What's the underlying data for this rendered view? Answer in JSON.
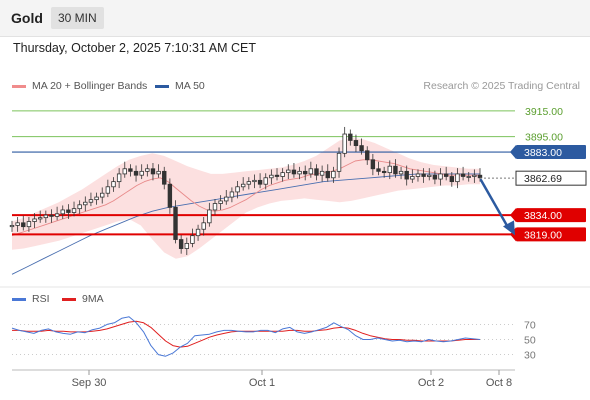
{
  "header": {
    "symbol": "Gold",
    "timeframe": "30 MIN"
  },
  "datetime": "Thursday, October 2, 2025 7:10:31 AM CET",
  "legend": {
    "main": [
      {
        "label": "MA 20 + Bollinger Bands",
        "color": "#f08c8c"
      },
      {
        "label": "MA 50",
        "color": "#2c5aa0"
      }
    ],
    "research": "Research © 2025 Trading Central",
    "rsi": [
      {
        "label": "RSI",
        "color": "#4a78d6"
      },
      {
        "label": "9MA",
        "color": "#e02020"
      }
    ]
  },
  "colors": {
    "resistance": "#7cc35b",
    "pivot": "#2c5aa0",
    "support": "#e00000",
    "price": "#333333",
    "arrow": "#2c5aa0",
    "candle": "#333333"
  },
  "chart_data": [
    {
      "type": "candlestick",
      "title": "Gold",
      "x_tick_labels": [
        "Sep 30",
        "Oct 1",
        "Oct 2",
        "Oct 8"
      ],
      "ylim": [
        3782,
        3925
      ],
      "levels": [
        {
          "value": 3915.0,
          "label": "3915.00",
          "kind": "resistance"
        },
        {
          "value": 3895.0,
          "label": "3895.00",
          "kind": "resistance"
        },
        {
          "value": 3883.0,
          "label": "3883.00",
          "kind": "pivot"
        },
        {
          "value": 3834.0,
          "label": "3834.00",
          "kind": "support"
        },
        {
          "value": 3819.0,
          "label": "3819.00",
          "kind": "support"
        }
      ],
      "last_price": {
        "value": 3862.69,
        "label": "3862.69"
      },
      "close_series": [
        3826,
        3828,
        3825,
        3829,
        3831,
        3832,
        3834,
        3833,
        3835,
        3838,
        3836,
        3839,
        3842,
        3844,
        3846,
        3848,
        3851,
        3856,
        3860,
        3866,
        3870,
        3868,
        3865,
        3868,
        3870,
        3866,
        3868,
        3858,
        3840,
        3815,
        3808,
        3812,
        3818,
        3823,
        3828,
        3838,
        3843,
        3845,
        3848,
        3852,
        3856,
        3858,
        3860,
        3861,
        3858,
        3863,
        3865,
        3864,
        3867,
        3869,
        3866,
        3868,
        3866,
        3870,
        3865,
        3868,
        3863,
        3868,
        3882,
        3897,
        3892,
        3888,
        3884,
        3877,
        3870,
        3868,
        3867,
        3872,
        3866,
        3868,
        3862,
        3864,
        3866,
        3864,
        3865,
        3862,
        3866,
        3864,
        3860,
        3866,
        3864,
        3864,
        3865,
        3863
      ],
      "ma20_series": [
        3818,
        3820,
        3822,
        3824,
        3826,
        3828,
        3830,
        3832,
        3834,
        3836,
        3838,
        3840,
        3842,
        3845,
        3849,
        3853,
        3857,
        3860,
        3862,
        3863,
        3860,
        3855,
        3850,
        3845,
        3841,
        3838,
        3837,
        3838,
        3840,
        3843,
        3846,
        3850,
        3854,
        3857,
        3859,
        3861,
        3862,
        3863,
        3865,
        3866,
        3867,
        3868,
        3870,
        3873,
        3876,
        3877,
        3877,
        3876,
        3875,
        3874,
        3872,
        3870,
        3869,
        3868,
        3867,
        3866,
        3865,
        3865,
        3865,
        3865,
        3865
      ],
      "bb_upper": [
        3829,
        3832,
        3836,
        3840,
        3844,
        3849,
        3854,
        3860,
        3866,
        3872,
        3877,
        3880,
        3882,
        3880,
        3876,
        3872,
        3869,
        3866,
        3866,
        3867,
        3868,
        3869,
        3870,
        3871,
        3873,
        3876,
        3880,
        3886,
        3892,
        3894,
        3893,
        3890,
        3886,
        3882,
        3878,
        3875,
        3873,
        3872,
        3871,
        3870,
        3870
      ],
      "bb_lower": [
        3807,
        3808,
        3810,
        3812,
        3814,
        3817,
        3820,
        3823,
        3826,
        3829,
        3831,
        3826,
        3815,
        3805,
        3800,
        3802,
        3808,
        3815,
        3822,
        3829,
        3836,
        3840,
        3843,
        3845,
        3846,
        3847,
        3846,
        3845,
        3844,
        3845,
        3847,
        3849,
        3851,
        3853,
        3854,
        3855,
        3856,
        3857,
        3857,
        3858,
        3858
      ],
      "ma50_series": [
        3788,
        3794,
        3800,
        3806,
        3812,
        3818,
        3823,
        3828,
        3833,
        3837,
        3840,
        3842,
        3844,
        3846,
        3848,
        3850,
        3852,
        3854,
        3856,
        3858,
        3860,
        3861,
        3862,
        3863,
        3864,
        3865,
        3866,
        3866,
        3866,
        3866,
        3866
      ]
    },
    {
      "type": "line",
      "title": "RSI",
      "y_tick_labels": [
        "70",
        "50",
        "30"
      ],
      "ylim": [
        15,
        85
      ],
      "series": [
        {
          "name": "RSI",
          "values": [
            65,
            62,
            60,
            58,
            62,
            64,
            60,
            58,
            57,
            60,
            59,
            63,
            65,
            70,
            72,
            78,
            80,
            72,
            60,
            42,
            30,
            28,
            32,
            40,
            45,
            55,
            56,
            57,
            60,
            62,
            62,
            61,
            60,
            60,
            62,
            62,
            59,
            64,
            66,
            60,
            58,
            60,
            63,
            66,
            72,
            67,
            63,
            55,
            50,
            50,
            52,
            50,
            48,
            49,
            47,
            48,
            47,
            50,
            48,
            47,
            48,
            50,
            52,
            51,
            50
          ]
        },
        {
          "name": "9MA",
          "values": [
            62,
            62,
            61,
            61,
            61,
            62,
            61,
            61,
            60,
            60,
            60,
            61,
            62,
            64,
            67,
            70,
            73,
            74,
            72,
            66,
            57,
            48,
            42,
            40,
            41,
            45,
            49,
            53,
            56,
            58,
            60,
            61,
            61,
            61,
            61,
            61,
            61,
            61,
            62,
            62,
            61,
            61,
            62,
            63,
            65,
            66,
            65,
            62,
            58,
            55,
            53,
            51,
            50,
            50,
            49,
            49,
            48,
            48,
            48,
            48,
            48,
            49,
            50,
            50,
            50
          ]
        }
      ]
    }
  ]
}
